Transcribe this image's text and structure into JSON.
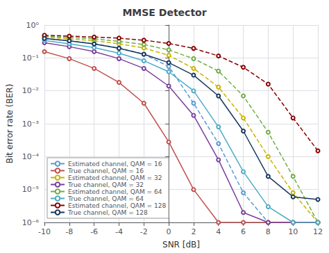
{
  "chart_data": {
    "type": "line",
    "title": "MMSE Detector",
    "xlabel": "SNR [dB]",
    "ylabel": "Bit error rate (BER)",
    "x": [
      -10,
      -8,
      -6,
      -4,
      -2,
      0,
      2,
      4,
      6,
      8,
      10,
      12
    ],
    "series": [
      {
        "name": "Estimated channel, QAM = 16",
        "color": "#5B9BD5",
        "line_style": "dashed",
        "marker": "circle",
        "values": [
          0.38,
          0.33,
          0.27,
          0.2,
          0.13,
          0.055,
          0.0042,
          0.00025,
          8e-06,
          1e-06,
          1e-06,
          1e-06
        ]
      },
      {
        "name": "True channel, QAM = 16",
        "color": "#C0504D",
        "line_style": "solid",
        "marker": "circle",
        "values": [
          0.155,
          0.095,
          0.048,
          0.018,
          0.0042,
          0.00028,
          1e-05,
          1e-06,
          1e-06,
          1e-06,
          1e-06,
          1e-06
        ]
      },
      {
        "name": "Estimated channel, QAM = 32",
        "color": "#C8B400",
        "line_style": "dashed",
        "marker": "circle",
        "values": [
          0.43,
          0.38,
          0.33,
          0.27,
          0.2,
          0.12,
          0.048,
          0.013,
          0.0015,
          0.0001,
          8e-06,
          1e-06
        ]
      },
      {
        "name": "True channel, QAM = 32",
        "color": "#7B3F9E",
        "line_style": "solid",
        "marker": "circle",
        "values": [
          0.29,
          0.22,
          0.155,
          0.095,
          0.048,
          0.014,
          0.0018,
          8e-05,
          2e-06,
          1e-06,
          1e-06,
          1e-06
        ]
      },
      {
        "name": "Estimated channel, QAM = 64",
        "color": "#70AD47",
        "line_style": "dashed",
        "marker": "circle",
        "values": [
          0.46,
          0.42,
          0.38,
          0.32,
          0.255,
          0.175,
          0.095,
          0.04,
          0.007,
          0.00055,
          2.5e-05,
          1e-06
        ]
      },
      {
        "name": "True channel, QAM = 64",
        "color": "#4BACC6",
        "line_style": "solid",
        "marker": "circle",
        "values": [
          0.34,
          0.27,
          0.205,
          0.14,
          0.082,
          0.038,
          0.01,
          0.0008,
          3.5e-05,
          3e-06,
          1e-06,
          1e-06
        ]
      },
      {
        "name": "Estimated channel, QAM = 128",
        "color": "#8B0000",
        "line_style": "dashed",
        "marker": "circle",
        "values": [
          0.49,
          0.46,
          0.43,
          0.4,
          0.345,
          0.275,
          0.195,
          0.115,
          0.052,
          0.016,
          0.0015,
          0.00015
        ]
      },
      {
        "name": "True channel, QAM = 128",
        "color": "#17375E",
        "line_style": "solid",
        "marker": "circle",
        "values": [
          0.39,
          0.33,
          0.265,
          0.195,
          0.13,
          0.072,
          0.03,
          0.007,
          0.0006,
          2.5e-05,
          6e-06,
          5e-06
        ]
      }
    ],
    "xlim": [
      -10,
      12
    ],
    "xticks": [
      -10,
      -8,
      -6,
      -4,
      -2,
      0,
      2,
      4,
      6,
      8,
      10,
      12
    ],
    "ylim": [
      1e-06,
      1.0
    ],
    "yticks": [
      {
        "value": 1e-06,
        "label": "10⁻⁶"
      },
      {
        "value": 1e-05,
        "label": "10⁻⁵"
      },
      {
        "value": 0.0001,
        "label": "10⁻⁴"
      },
      {
        "value": 0.001,
        "label": "10⁻³"
      },
      {
        "value": 0.01,
        "label": "10⁻²"
      },
      {
        "value": 0.1,
        "label": "10⁻¹"
      },
      {
        "value": 1,
        "label": "10⁰"
      }
    ],
    "log": "y",
    "grid": true,
    "legend": "lower left"
  }
}
